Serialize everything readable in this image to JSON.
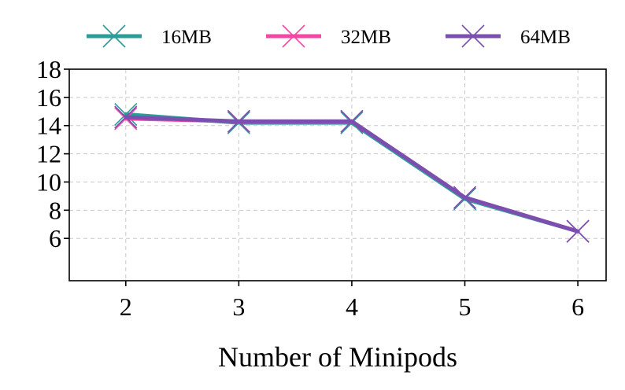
{
  "chart_data": {
    "type": "line",
    "title": "",
    "xlabel": "Number of Minipods",
    "ylabel": "",
    "x": [
      2,
      3,
      4,
      5,
      6
    ],
    "xticks": [
      "2",
      "3",
      "4",
      "5",
      "6"
    ],
    "yticks": [
      "6",
      "8",
      "10",
      "12",
      "14",
      "16",
      "18"
    ],
    "ylim": [
      3,
      18
    ],
    "xlim": [
      1.5,
      6.25
    ],
    "grid": true,
    "legend_position": "top",
    "series": [
      {
        "name": "16MB",
        "color": "#2a9d9a",
        "values": [
          14.8,
          14.2,
          14.2,
          8.8,
          6.5
        ]
      },
      {
        "name": "32MB",
        "color": "#f545a5",
        "values": [
          14.5,
          14.3,
          14.3,
          8.9,
          6.5
        ]
      },
      {
        "name": "64MB",
        "color": "#7b4fb0",
        "values": [
          14.6,
          14.3,
          14.3,
          8.9,
          6.5
        ]
      }
    ]
  }
}
